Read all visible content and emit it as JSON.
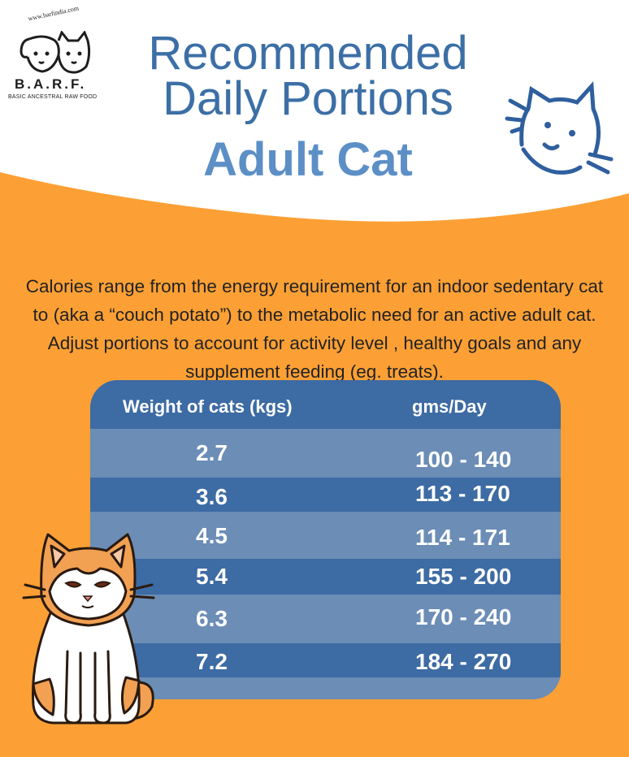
{
  "logo": {
    "url": "www.barfindia.com",
    "brand": "B.A.R.F.",
    "tagline": "BASIC ANCESTRAL RAW FOOD"
  },
  "header": {
    "title_line1": "Recommended",
    "title_line2": "Daily Portions",
    "subtitle": "Adult Cat"
  },
  "intro": "Calories range from the energy requirement for an indoor sedentary cat to (aka a “couch potato”) to the metabolic need for an active adult cat. Adjust portions to account for activity level , healthy goals and any supplement feeding (eg. treats).",
  "table": {
    "columns": [
      "Weight of cats (kgs)",
      "gms/Day"
    ],
    "rows": [
      {
        "weight": "2.7",
        "grams": "100 - 140"
      },
      {
        "weight": "3.6",
        "grams": "113 - 170"
      },
      {
        "weight": "4.5",
        "grams": "114 - 171"
      },
      {
        "weight": "5.4",
        "grams": "155 - 200"
      },
      {
        "weight": "6.3",
        "grams": "170 - 240"
      },
      {
        "weight": "7.2",
        "grams": "184 - 270"
      }
    ]
  },
  "icons": [
    "dog-cat-logo-icon",
    "cat-face-doodle-icon",
    "sitting-cat-illustration"
  ],
  "colors": {
    "background": "#fca035",
    "title_blue": "#3c6fa6",
    "subtitle_blue": "#5c8fc6",
    "table_dark": "#3d6ba3",
    "table_light": "#6b8db6"
  }
}
